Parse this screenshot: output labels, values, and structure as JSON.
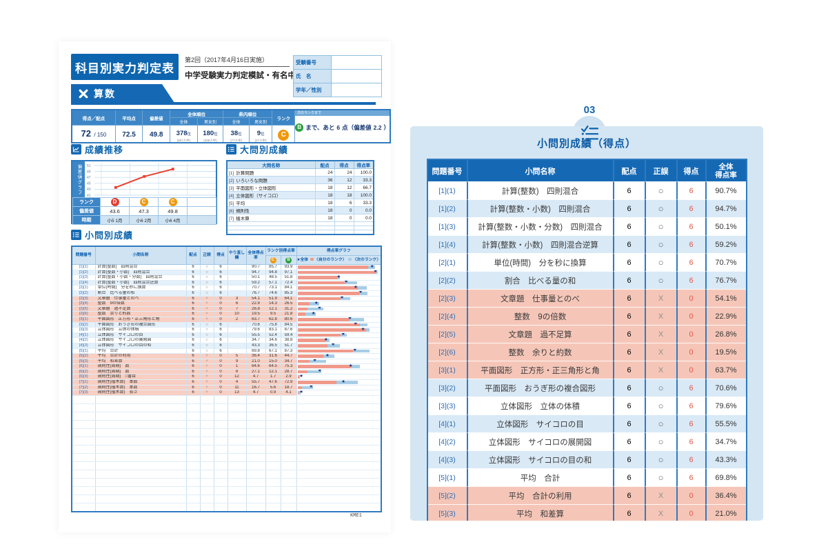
{
  "doc": {
    "title": "科目別実力判定表",
    "round": "第2回（2017年4月16日実施）",
    "exam_name": "中学受験実力判定模試・有名中編",
    "subject": "算数",
    "footer_code": "KME1",
    "student_fields": [
      {
        "label": "受験番号"
      },
      {
        "label": "氏　名"
      },
      {
        "label": "学年／性別"
      }
    ]
  },
  "summary": {
    "h_score": "得点／配点",
    "h_avg": "平均点",
    "h_dev": "偏差値",
    "h_overall": "全体順位",
    "h_pref": "県内順位",
    "h_all": "全体",
    "h_gender": "男女別",
    "h_rank": "ランク",
    "h_next": "次のランクまで",
    "score": "72",
    "full": "150",
    "avg": "72.5",
    "dev": "49.8",
    "ranks": [
      {
        "value": "378",
        "unit": "位",
        "of": "(857人中)"
      },
      {
        "value": "180",
        "unit": "位",
        "of": "(458人中)"
      },
      {
        "value": "38",
        "unit": "位",
        "of": "(77人中)"
      },
      {
        "value": "9",
        "unit": "位",
        "of": "(27人中)"
      }
    ],
    "rank": "C",
    "next_rank": "B",
    "next_text": "まで、あと",
    "next_points": "6",
    "next_mid": "点（偏差値",
    "next_dev": "2.2",
    "next_close": "）"
  },
  "transition": {
    "heading": "成績推移",
    "ylabel": "偏差値グラフ",
    "yticks": [
      "51",
      "49",
      "47",
      "45",
      "43",
      "41"
    ],
    "rank_label": "ランク",
    "dev_label": "偏差値",
    "period_label": "時期",
    "points": [
      {
        "rank": "D",
        "dev": "43.6",
        "period": "小5 1月"
      },
      {
        "rank": "C",
        "dev": "47.3",
        "period": "小6 2月"
      },
      {
        "rank": "C",
        "dev": "49.8",
        "period": "小6 4月"
      }
    ]
  },
  "major": {
    "heading": "大問別成績",
    "headers": {
      "name": "大問名称",
      "pts": "配点",
      "score": "得点",
      "rate": "得点率"
    },
    "rows": [
      {
        "no": "[1]",
        "name": "計算問題",
        "pts": "24",
        "score": "24",
        "rate": "100.0"
      },
      {
        "no": "[2]",
        "name": "いろいろな問題",
        "pts": "36",
        "score": "12",
        "rate": "33.3"
      },
      {
        "no": "[3]",
        "name": "平面図形・立体図形",
        "pts": "18",
        "score": "12",
        "rate": "66.7"
      },
      {
        "no": "[4]",
        "name": "立体図形（サイコロ）",
        "pts": "18",
        "score": "18",
        "rate": "100.0"
      },
      {
        "no": "[5]",
        "name": "平均",
        "pts": "18",
        "score": "6",
        "rate": "33.3"
      },
      {
        "no": "[6]",
        "name": "規則性",
        "pts": "18",
        "score": "0",
        "rate": "0.0"
      },
      {
        "no": "[7]",
        "name": "植木算",
        "pts": "18",
        "score": "0",
        "rate": "0.0"
      }
    ],
    "empty_rows": 3
  },
  "minor": {
    "heading": "小問別成績",
    "headers": {
      "no": "問題番号",
      "name": "小問名称",
      "pts": "配点",
      "mark": "正誤",
      "score": "得点",
      "redo": "やり直し欄",
      "rate": "全体得点率",
      "rank_rate": "ランク別得点率",
      "c": "C",
      "b": "B",
      "graph": "得点率グラフ"
    },
    "legend": {
      "star": "★",
      "star_label": "全体",
      "own": "〈自分のランク〉",
      "next": "〈次のランク〉"
    },
    "rows": [
      {
        "no": "[1](1)",
        "name": "計算(整数)　四則混合",
        "pts": "6",
        "mark": "○",
        "score": "6",
        "redo": "",
        "rate": "90.7",
        "c": "85.7",
        "b": "93.9"
      },
      {
        "no": "[1](2)",
        "name": "計算(整数・小数)　四則混合",
        "pts": "6",
        "mark": "○",
        "score": "6",
        "redo": "",
        "rate": "94.7",
        "c": "94.8",
        "b": "97.1"
      },
      {
        "no": "[1](3)",
        "name": "計算(整数・小数・分数)　四則混合",
        "pts": "6",
        "mark": "○",
        "score": "6",
        "redo": "",
        "rate": "50.1",
        "c": "48.5",
        "b": "51.8"
      },
      {
        "no": "[1](4)",
        "name": "計算(整数・小数)　四則混合逆算",
        "pts": "6",
        "mark": "○",
        "score": "6",
        "redo": "",
        "rate": "59.2",
        "c": "57.1",
        "b": "72.4"
      },
      {
        "no": "[2](1)",
        "name": "単位(時間)　分を秒に換算",
        "pts": "6",
        "mark": "○",
        "score": "6",
        "redo": "",
        "rate": "70.7",
        "c": "73.1",
        "b": "84.1"
      },
      {
        "no": "[2](2)",
        "name": "割合　比べる量の和",
        "pts": "6",
        "mark": "○",
        "score": "6",
        "redo": "",
        "rate": "76.7",
        "c": "74.6",
        "b": "85.3"
      },
      {
        "no": "[2](3)",
        "name": "文章題　仕事量とのべ",
        "pts": "6",
        "mark": "×",
        "score": "0",
        "redo": "3",
        "rate": "54.1",
        "c": "51.9",
        "b": "64.1"
      },
      {
        "no": "[2](4)",
        "name": "整数　9の倍数",
        "pts": "6",
        "mark": "×",
        "score": "0",
        "redo": "6",
        "rate": "22.9",
        "c": "14.3",
        "b": "26.5"
      },
      {
        "no": "[2](5)",
        "name": "文章題　過不足算",
        "pts": "6",
        "mark": "×",
        "score": "0",
        "redo": "7",
        "rate": "26.8",
        "c": "12.1",
        "b": "31.2"
      },
      {
        "no": "[2](6)",
        "name": "整数　余りと約数",
        "pts": "6",
        "mark": "×",
        "score": "0",
        "redo": "10",
        "rate": "19.5",
        "c": "9.5",
        "b": "21.8"
      },
      {
        "no": "[3](1)",
        "name": "平面図形　正方形・正三角形と角",
        "pts": "6",
        "mark": "×",
        "score": "0",
        "redo": "2",
        "rate": "63.7",
        "c": "62.8",
        "b": "80.6"
      },
      {
        "no": "[3](2)",
        "name": "平面図形　おうぎ形の複合図形",
        "pts": "6",
        "mark": "○",
        "score": "6",
        "redo": "",
        "rate": "70.6",
        "c": "75.8",
        "b": "84.5"
      },
      {
        "no": "[3](3)",
        "name": "立体図形　立体の体積",
        "pts": "6",
        "mark": "○",
        "score": "6",
        "redo": "",
        "rate": "79.6",
        "c": "83.1",
        "b": "87.6"
      },
      {
        "no": "[4](1)",
        "name": "立体図形　サイコロの目",
        "pts": "6",
        "mark": "○",
        "score": "6",
        "redo": "",
        "rate": "55.5",
        "c": "52.4",
        "b": "59.4"
      },
      {
        "no": "[4](2)",
        "name": "立体図形　サイコロの展開図",
        "pts": "6",
        "mark": "○",
        "score": "6",
        "redo": "",
        "rate": "34.7",
        "c": "34.6",
        "b": "38.8"
      },
      {
        "no": "[4](3)",
        "name": "立体図形　サイコロの目の和",
        "pts": "6",
        "mark": "○",
        "score": "6",
        "redo": "",
        "rate": "43.3",
        "c": "36.5",
        "b": "51.7"
      },
      {
        "no": "[5](1)",
        "name": "平均　合計",
        "pts": "6",
        "mark": "○",
        "score": "6",
        "redo": "",
        "rate": "69.8",
        "c": "67.1",
        "b": "87.3"
      },
      {
        "no": "[5](2)",
        "name": "平均　合計の利用",
        "pts": "6",
        "mark": "×",
        "score": "0",
        "redo": "5",
        "rate": "36.4",
        "c": "31.6",
        "b": "44.7"
      },
      {
        "no": "[5](3)",
        "name": "平均　和差算",
        "pts": "6",
        "mark": "×",
        "score": "0",
        "redo": "9",
        "rate": "21.0",
        "c": "15.0",
        "b": "34.7"
      },
      {
        "no": "[6](1)",
        "name": "規則性(周期)　数",
        "pts": "6",
        "mark": "×",
        "score": "0",
        "redo": "1",
        "rate": "64.6",
        "c": "64.5",
        "b": "75.3"
      },
      {
        "no": "[6](2)",
        "name": "規則性(周期)　数",
        "pts": "6",
        "mark": "×",
        "score": "0",
        "redo": "8",
        "rate": "27.1",
        "c": "12.1",
        "b": "28.7"
      },
      {
        "no": "[6](3)",
        "name": "規則性(周期)　□番目",
        "pts": "6",
        "mark": "×",
        "score": "0",
        "redo": "12",
        "rate": "4.7",
        "c": "1.7",
        "b": "2.9"
      },
      {
        "no": "[7](1)",
        "name": "規則性(植木算)　本数",
        "pts": "6",
        "mark": "×",
        "score": "0",
        "redo": "4",
        "rate": "55.7",
        "c": "47.6",
        "b": "72.9"
      },
      {
        "no": "[7](2)",
        "name": "規則性(植木算)　本数",
        "pts": "6",
        "mark": "×",
        "score": "0",
        "redo": "11",
        "rate": "16.7",
        "c": "5.6",
        "b": "18.7"
      },
      {
        "no": "[7](3)",
        "name": "規則性(植木算)　長さ",
        "pts": "6",
        "mark": "×",
        "score": "0",
        "redo": "13",
        "rate": "4.7",
        "c": "0.9",
        "b": "4.1"
      }
    ],
    "empty_rows": 14
  },
  "panel": {
    "number": "03",
    "title": "小問別成績（得点）",
    "headers": [
      "問題番号",
      "小問名称",
      "配点",
      "正誤",
      "得点"
    ],
    "rate_header": {
      "line1": "全体",
      "line2": "得点率"
    },
    "visible_rows": 19,
    "wrong_mark": "X"
  }
}
